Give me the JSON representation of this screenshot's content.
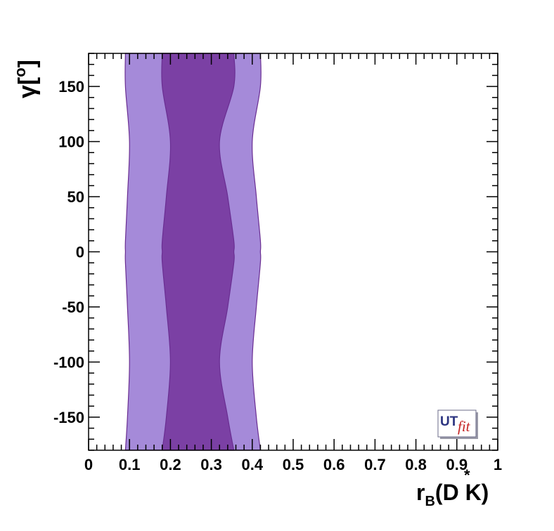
{
  "chart_data": {
    "type": "contour",
    "xlabel": {
      "main": "r",
      "sub": "B",
      "rest": "(D K)",
      "star": "*"
    },
    "ylabel": {
      "main": "γ[",
      "sup": "o",
      "rest": "]"
    },
    "xlim": [
      0,
      1
    ],
    "ylim": [
      -180,
      180
    ],
    "x_ticks": [
      {
        "value": 0,
        "label": "0"
      },
      {
        "value": 0.1,
        "label": "0.1"
      },
      {
        "value": 0.2,
        "label": "0.2"
      },
      {
        "value": 0.3,
        "label": "0.3"
      },
      {
        "value": 0.4,
        "label": "0.4"
      },
      {
        "value": 0.5,
        "label": "0.5"
      },
      {
        "value": 0.6,
        "label": "0.6"
      },
      {
        "value": 0.7,
        "label": "0.7"
      },
      {
        "value": 0.8,
        "label": "0.8"
      },
      {
        "value": 0.9,
        "label": "0.9"
      },
      {
        "value": 1,
        "label": "1"
      }
    ],
    "y_ticks": [
      {
        "value": 150,
        "label": "150"
      },
      {
        "value": 100,
        "label": "100"
      },
      {
        "value": 50,
        "label": "50"
      },
      {
        "value": 0,
        "label": "0"
      },
      {
        "value": -50,
        "label": "-50"
      },
      {
        "value": -100,
        "label": "-100"
      },
      {
        "value": -150,
        "label": "-150"
      }
    ],
    "regions": [
      {
        "level": "outer",
        "color": "#a58ad9",
        "left_edge": [
          [
            -180,
            0.09
          ],
          [
            -150,
            0.095
          ],
          [
            -100,
            0.1
          ],
          [
            -50,
            0.095
          ],
          [
            -10,
            0.09
          ],
          [
            0,
            0.09
          ],
          [
            10,
            0.09
          ],
          [
            50,
            0.095
          ],
          [
            100,
            0.1
          ],
          [
            150,
            0.09
          ],
          [
            180,
            0.09
          ]
        ],
        "right_edge": [
          [
            -180,
            0.42
          ],
          [
            -150,
            0.41
          ],
          [
            -100,
            0.4
          ],
          [
            -50,
            0.41
          ],
          [
            -10,
            0.42
          ],
          [
            0,
            0.42
          ],
          [
            10,
            0.42
          ],
          [
            50,
            0.41
          ],
          [
            100,
            0.4
          ],
          [
            150,
            0.42
          ],
          [
            180,
            0.42
          ]
        ]
      },
      {
        "level": "inner",
        "color": "#7b40a4",
        "left_edge": [
          [
            -180,
            0.18
          ],
          [
            -150,
            0.19
          ],
          [
            -100,
            0.2
          ],
          [
            -50,
            0.19
          ],
          [
            -10,
            0.18
          ],
          [
            0,
            0.18
          ],
          [
            10,
            0.18
          ],
          [
            50,
            0.19
          ],
          [
            100,
            0.2
          ],
          [
            150,
            0.18
          ],
          [
            180,
            0.18
          ]
        ],
        "right_edge": [
          [
            -180,
            0.355
          ],
          [
            -150,
            0.34
          ],
          [
            -100,
            0.32
          ],
          [
            -50,
            0.34
          ],
          [
            -10,
            0.355
          ],
          [
            0,
            0.355
          ],
          [
            10,
            0.355
          ],
          [
            50,
            0.34
          ],
          [
            100,
            0.32
          ],
          [
            150,
            0.355
          ],
          [
            180,
            0.355
          ]
        ]
      }
    ],
    "grid": false
  },
  "logo": {
    "text_ut": "UT",
    "text_fit": "fit"
  }
}
